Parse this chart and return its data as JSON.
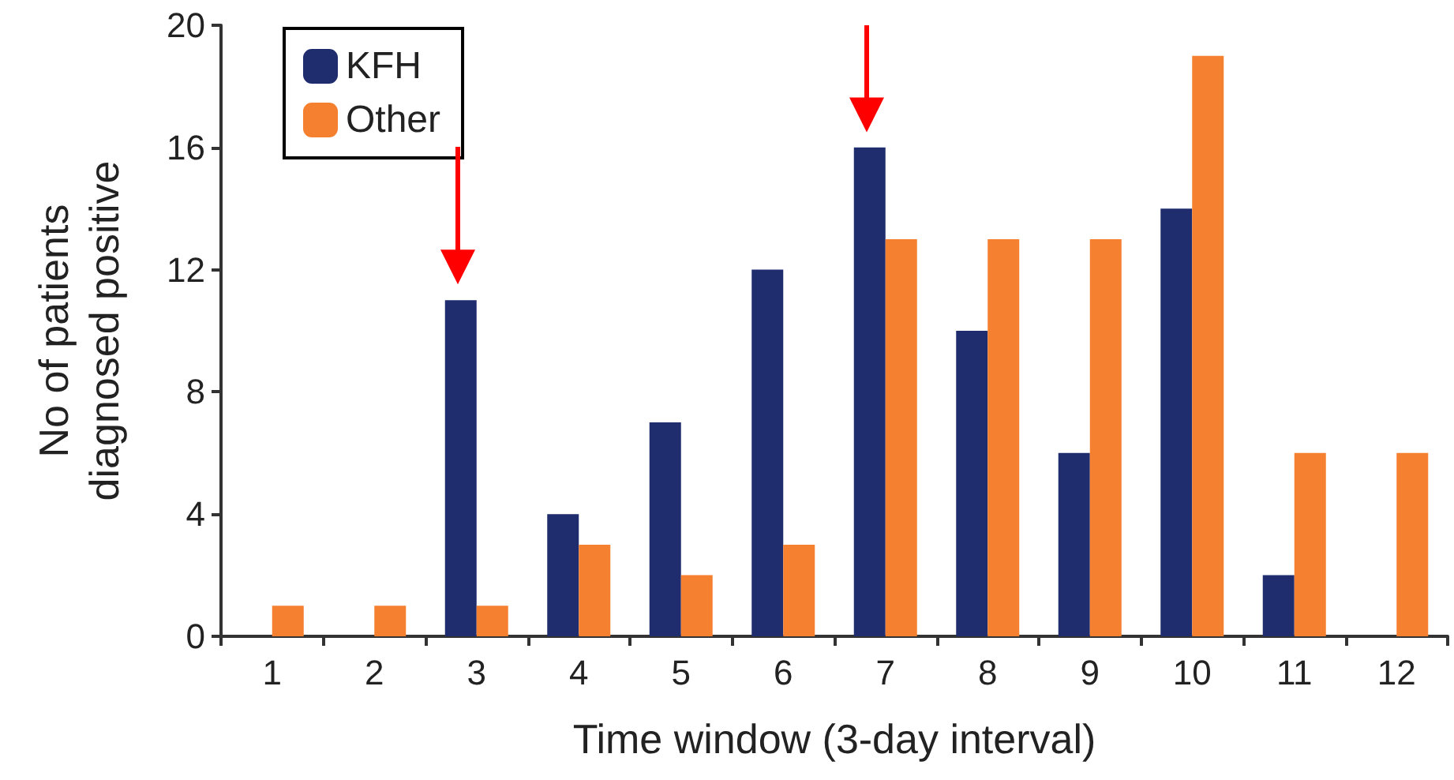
{
  "chart_data": {
    "type": "bar",
    "xlabel": "Time window (3-day interval)",
    "ylabel": "No of patients\ndiagnosed positive",
    "categories": [
      "1",
      "2",
      "3",
      "4",
      "5",
      "6",
      "7",
      "8",
      "9",
      "10",
      "11",
      "12"
    ],
    "series": [
      {
        "name": "KFH",
        "color": "#1f2d6e",
        "values": [
          0,
          0,
          11,
          4,
          7,
          12,
          16,
          10,
          6,
          14,
          2,
          0
        ]
      },
      {
        "name": "Other",
        "color": "#f5802f",
        "values": [
          1,
          1,
          1,
          3,
          2,
          3,
          13,
          13,
          13,
          19,
          6,
          6
        ]
      }
    ],
    "ylim": [
      0,
      20
    ],
    "yticks": [
      0,
      4,
      8,
      12,
      16,
      20
    ],
    "grid": false,
    "legend": "top left"
  }
}
